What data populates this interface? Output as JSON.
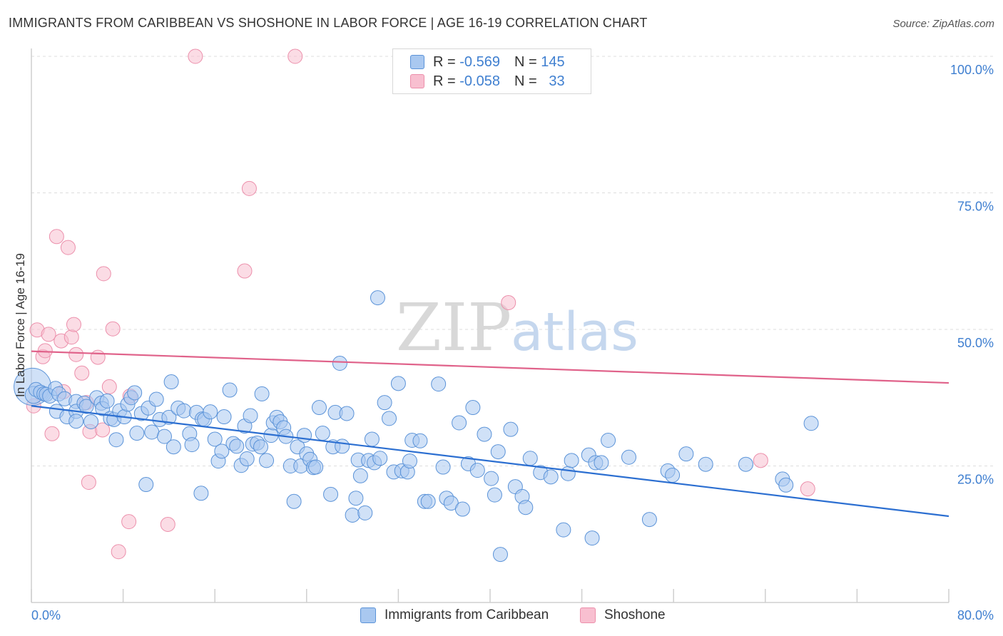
{
  "header": {
    "title": "IMMIGRANTS FROM CARIBBEAN VS SHOSHONE IN LABOR FORCE | AGE 16-19 CORRELATION CHART",
    "source": "Source: ZipAtlas.com"
  },
  "watermark": "ZIPatlas",
  "legend": {
    "rows": [
      {
        "r_label": "R =",
        "r_value": "-0.569",
        "n_label": "N =",
        "n_value": "145"
      },
      {
        "r_label": "R =",
        "r_value": "-0.058",
        "n_label": "N =",
        "n_value": "33"
      }
    ]
  },
  "bottom_legend": {
    "items": [
      {
        "label": "Immigrants from Caribbean"
      },
      {
        "label": "Shoshone"
      }
    ]
  },
  "colors": {
    "blue_fill": "#a9c8f0",
    "blue_stroke": "#5b93d8",
    "blue_line": "#2c6fd1",
    "pink_fill": "#f8bfd0",
    "pink_stroke": "#ec8fab",
    "pink_line": "#e0628a",
    "tick_text": "#3f7fd0",
    "grid": "#dddddd"
  },
  "chart_data": {
    "type": "scatter",
    "title": "IMMIGRANTS FROM CARIBBEAN VS SHOSHONE IN LABOR FORCE | AGE 16-19 CORRELATION CHART",
    "ylabel": "In Labor Force | Age 16-19",
    "xlabel": "",
    "xlim": [
      0,
      80
    ],
    "ylim": [
      0,
      100
    ],
    "x_tick_labels": [
      "0.0%",
      "80.0%"
    ],
    "y_ticks": [
      {
        "value": 100,
        "label": "100.0%"
      },
      {
        "value": 75,
        "label": "75.0%"
      },
      {
        "value": 50,
        "label": "50.0%"
      },
      {
        "value": 25,
        "label": "25.0%"
      }
    ],
    "grid": true,
    "series": [
      {
        "name": "Immigrants from Caribbean",
        "color": "#a9c8f0",
        "trend": {
          "x": [
            0,
            80
          ],
          "y": [
            36.0,
            15.8
          ]
        },
        "points": [
          [
            0.1,
            39.5,
            26
          ],
          [
            0.2,
            38.0,
            12
          ],
          [
            0.4,
            39.0,
            10
          ],
          [
            0.8,
            38.5,
            10
          ],
          [
            1.1,
            38.2,
            10
          ],
          [
            1.3,
            38.1,
            10
          ],
          [
            1.6,
            37.8,
            10
          ],
          [
            2.1,
            39.2,
            10
          ],
          [
            2.4,
            38.2,
            10
          ],
          [
            2.9,
            37.3,
            10
          ],
          [
            2.2,
            35.0,
            10
          ],
          [
            3.1,
            34.0,
            10
          ],
          [
            3.9,
            36.8,
            10
          ],
          [
            3.9,
            35.0,
            10
          ],
          [
            3.9,
            33.2,
            10
          ],
          [
            4.6,
            36.5,
            10
          ],
          [
            4.8,
            35.9,
            10
          ],
          [
            5.2,
            33.1,
            10
          ],
          [
            5.7,
            37.5,
            10
          ],
          [
            6.1,
            36.5,
            10
          ],
          [
            6.2,
            35.5,
            10
          ],
          [
            6.6,
            36.9,
            10
          ],
          [
            6.9,
            33.7,
            10
          ],
          [
            7.2,
            33.5,
            10
          ],
          [
            7.4,
            29.8,
            10
          ],
          [
            7.7,
            35.1,
            10
          ],
          [
            8.1,
            34.0,
            10
          ],
          [
            8.4,
            36.3,
            10
          ],
          [
            8.7,
            37.5,
            10
          ],
          [
            9.0,
            38.4,
            10
          ],
          [
            9.2,
            31.0,
            10
          ],
          [
            9.6,
            34.6,
            10
          ],
          [
            10.0,
            21.6,
            10
          ],
          [
            10.2,
            35.6,
            10
          ],
          [
            10.5,
            31.2,
            10
          ],
          [
            10.9,
            37.2,
            10
          ],
          [
            11.2,
            33.5,
            10
          ],
          [
            11.6,
            30.4,
            10
          ],
          [
            12.0,
            33.9,
            10
          ],
          [
            12.2,
            40.4,
            10
          ],
          [
            12.4,
            28.5,
            10
          ],
          [
            12.8,
            35.6,
            10
          ],
          [
            13.3,
            35.1,
            10
          ],
          [
            13.8,
            30.9,
            10
          ],
          [
            14.0,
            28.9,
            10
          ],
          [
            14.4,
            34.8,
            10
          ],
          [
            14.8,
            20.0,
            10
          ],
          [
            14.9,
            33.6,
            10
          ],
          [
            15.1,
            33.5,
            10
          ],
          [
            15.6,
            34.9,
            10
          ],
          [
            16.0,
            29.9,
            10
          ],
          [
            16.3,
            25.9,
            10
          ],
          [
            16.6,
            27.7,
            10
          ],
          [
            16.8,
            34.0,
            10
          ],
          [
            17.3,
            38.9,
            10
          ],
          [
            17.6,
            29.1,
            10
          ],
          [
            17.9,
            28.6,
            10
          ],
          [
            18.3,
            25.1,
            10
          ],
          [
            18.6,
            32.3,
            10
          ],
          [
            18.8,
            26.3,
            10
          ],
          [
            19.1,
            34.2,
            10
          ],
          [
            19.3,
            29.0,
            10
          ],
          [
            19.7,
            29.2,
            10
          ],
          [
            20.0,
            28.5,
            10
          ],
          [
            20.1,
            38.2,
            10
          ],
          [
            20.5,
            26.0,
            10
          ],
          [
            20.9,
            30.6,
            10
          ],
          [
            21.1,
            32.9,
            10
          ],
          [
            21.4,
            33.9,
            10
          ],
          [
            21.7,
            33.1,
            10
          ],
          [
            22.0,
            32.0,
            10
          ],
          [
            22.2,
            30.4,
            10
          ],
          [
            22.6,
            25.0,
            10
          ],
          [
            22.9,
            18.5,
            10
          ],
          [
            23.2,
            28.5,
            10
          ],
          [
            23.5,
            25.0,
            10
          ],
          [
            23.8,
            30.6,
            10
          ],
          [
            24.0,
            27.2,
            10
          ],
          [
            24.3,
            26.2,
            10
          ],
          [
            24.6,
            24.7,
            10
          ],
          [
            24.8,
            24.8,
            10
          ],
          [
            25.1,
            35.7,
            10
          ],
          [
            25.4,
            31.0,
            10
          ],
          [
            26.1,
            19.8,
            10
          ],
          [
            26.3,
            28.5,
            10
          ],
          [
            26.5,
            34.8,
            10
          ],
          [
            26.9,
            43.8,
            10
          ],
          [
            27.1,
            28.6,
            10
          ],
          [
            27.5,
            34.6,
            10
          ],
          [
            28.0,
            16.0,
            10
          ],
          [
            28.3,
            19.1,
            10
          ],
          [
            28.5,
            26.1,
            10
          ],
          [
            28.7,
            23.2,
            10
          ],
          [
            29.1,
            16.4,
            10
          ],
          [
            29.4,
            26.0,
            10
          ],
          [
            29.7,
            29.9,
            10
          ],
          [
            29.9,
            25.6,
            10
          ],
          [
            30.2,
            55.8,
            10
          ],
          [
            30.4,
            26.4,
            10
          ],
          [
            30.8,
            36.6,
            10
          ],
          [
            31.2,
            33.7,
            10
          ],
          [
            31.6,
            23.9,
            10
          ],
          [
            32.0,
            40.1,
            10
          ],
          [
            32.3,
            24.1,
            10
          ],
          [
            32.8,
            23.9,
            10
          ],
          [
            33.0,
            25.9,
            10
          ],
          [
            33.2,
            29.7,
            10
          ],
          [
            33.9,
            29.6,
            10
          ],
          [
            34.3,
            18.5,
            10
          ],
          [
            34.6,
            18.5,
            10
          ],
          [
            35.5,
            40.0,
            10
          ],
          [
            35.9,
            24.8,
            10
          ],
          [
            36.2,
            19.1,
            10
          ],
          [
            36.6,
            18.2,
            10
          ],
          [
            37.3,
            32.9,
            10
          ],
          [
            37.6,
            17.1,
            10
          ],
          [
            38.1,
            25.4,
            10
          ],
          [
            38.5,
            35.7,
            10
          ],
          [
            38.9,
            24.2,
            10
          ],
          [
            39.5,
            30.8,
            10
          ],
          [
            40.1,
            22.7,
            10
          ],
          [
            40.4,
            19.7,
            10
          ],
          [
            40.7,
            27.6,
            10
          ],
          [
            40.9,
            8.8,
            10
          ],
          [
            41.8,
            31.7,
            10
          ],
          [
            42.2,
            21.2,
            10
          ],
          [
            42.8,
            19.4,
            10
          ],
          [
            43.1,
            17.4,
            10
          ],
          [
            43.5,
            26.4,
            10
          ],
          [
            44.4,
            23.8,
            10
          ],
          [
            45.3,
            23.0,
            10
          ],
          [
            46.4,
            13.3,
            10
          ],
          [
            46.8,
            23.6,
            10
          ],
          [
            47.1,
            26.0,
            10
          ],
          [
            48.6,
            27.0,
            10
          ],
          [
            48.9,
            11.8,
            10
          ],
          [
            49.2,
            25.6,
            10
          ],
          [
            49.7,
            25.6,
            10
          ],
          [
            50.3,
            29.7,
            10
          ],
          [
            52.1,
            26.6,
            10
          ],
          [
            53.9,
            15.2,
            10
          ],
          [
            55.5,
            24.1,
            10
          ],
          [
            55.9,
            23.3,
            10
          ],
          [
            57.1,
            27.2,
            10
          ],
          [
            58.8,
            25.3,
            10
          ],
          [
            62.3,
            25.3,
            10
          ],
          [
            65.5,
            22.6,
            10
          ],
          [
            65.8,
            21.5,
            10
          ],
          [
            68.0,
            32.8,
            10
          ]
        ]
      },
      {
        "name": "Shoshone",
        "color": "#f8bfd0",
        "trend": {
          "x": [
            0,
            80
          ],
          "y": [
            46.0,
            40.2
          ]
        },
        "points": [
          [
            0.2,
            36.0,
            10
          ],
          [
            0.5,
            49.9,
            10
          ],
          [
            1.0,
            45.0,
            10
          ],
          [
            1.2,
            46.1,
            10
          ],
          [
            1.5,
            49.1,
            10
          ],
          [
            1.8,
            30.9,
            10
          ],
          [
            2.2,
            67.0,
            10
          ],
          [
            2.6,
            47.9,
            10
          ],
          [
            2.8,
            38.6,
            10
          ],
          [
            3.2,
            65.0,
            10
          ],
          [
            3.5,
            48.6,
            10
          ],
          [
            3.7,
            50.9,
            10
          ],
          [
            3.9,
            45.4,
            10
          ],
          [
            4.4,
            42.0,
            10
          ],
          [
            4.8,
            36.6,
            10
          ],
          [
            5.0,
            22.0,
            10
          ],
          [
            5.1,
            31.3,
            10
          ],
          [
            5.8,
            44.9,
            10
          ],
          [
            6.2,
            31.6,
            10
          ],
          [
            6.3,
            60.2,
            10
          ],
          [
            6.8,
            39.5,
            10
          ],
          [
            7.1,
            50.1,
            10
          ],
          [
            7.6,
            9.3,
            10
          ],
          [
            8.5,
            14.8,
            10
          ],
          [
            8.6,
            37.8,
            10
          ],
          [
            11.9,
            14.3,
            10
          ],
          [
            14.3,
            100.0,
            10
          ],
          [
            18.6,
            60.7,
            10
          ],
          [
            19.0,
            75.8,
            10
          ],
          [
            23.0,
            100.0,
            10
          ],
          [
            41.6,
            54.9,
            10
          ],
          [
            63.6,
            26.0,
            10
          ],
          [
            67.7,
            20.8,
            10
          ]
        ]
      }
    ]
  }
}
